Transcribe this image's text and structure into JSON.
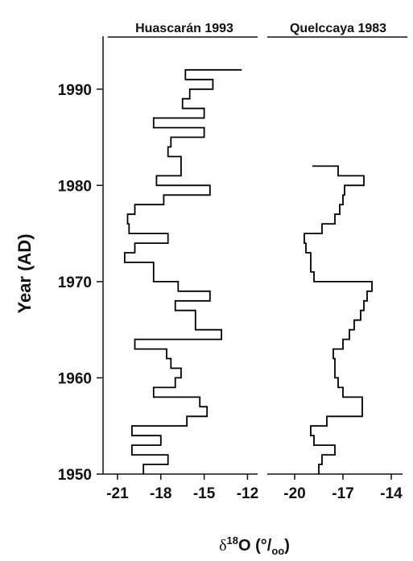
{
  "chart_data": [
    {
      "type": "step",
      "title": "Huascarán 1993",
      "ylabel": "Year (AD)",
      "xlabel": [
        "δ",
        "18",
        "O (°/",
        "oo",
        ")"
      ],
      "x": [
        1950,
        1951,
        1952,
        1953,
        1954,
        1955,
        1956,
        1957,
        1958,
        1959,
        1960,
        1961,
        1962,
        1963,
        1964,
        1965,
        1966,
        1967,
        1968,
        1969,
        1970,
        1971,
        1972,
        1973,
        1974,
        1975,
        1976,
        1977,
        1978,
        1979,
        1980,
        1981,
        1982,
        1983,
        1984,
        1985,
        1986,
        1987,
        1988,
        1989,
        1990,
        1991,
        1992
      ],
      "values": [
        -19.2,
        -17.5,
        -20.0,
        -18.0,
        -20.0,
        -16.2,
        -14.8,
        -15.3,
        -18.5,
        -17.0,
        -16.6,
        -17.3,
        -17.6,
        -19.8,
        -13.8,
        -15.6,
        -15.6,
        -17.0,
        -14.6,
        -16.8,
        -18.5,
        -18.5,
        -20.5,
        -19.8,
        -17.5,
        -20.2,
        -20.3,
        -19.8,
        -17.8,
        -14.6,
        -18.3,
        -16.6,
        -16.6,
        -17.5,
        -17.3,
        -15.0,
        -18.5,
        -15.0,
        -16.5,
        -16.0,
        -14.4,
        -16.3,
        -12.4
      ],
      "color": "#000000",
      "xlim": [
        -22,
        -11.3
      ],
      "xticks": [
        -21,
        -18,
        -15,
        -12
      ],
      "ylim": [
        1950,
        1995.5
      ],
      "yticks": [
        1950,
        1960,
        1970,
        1980,
        1990
      ]
    },
    {
      "type": "step",
      "title": "Quelccaya 1983",
      "x": [
        1950,
        1951,
        1952,
        1953,
        1954,
        1955,
        1956,
        1957,
        1958,
        1959,
        1960,
        1961,
        1962,
        1963,
        1964,
        1965,
        1966,
        1967,
        1968,
        1969,
        1970,
        1971,
        1972,
        1973,
        1974,
        1975,
        1976,
        1977,
        1978,
        1979,
        1980,
        1981,
        1982
      ],
      "values": [
        -18.5,
        -18.3,
        -17.5,
        -18.8,
        -19.0,
        -18.0,
        -15.8,
        -15.8,
        -17.0,
        -17.3,
        -17.5,
        -17.5,
        -17.6,
        -17.0,
        -16.6,
        -16.3,
        -15.9,
        -15.7,
        -15.5,
        -15.2,
        -18.8,
        -19.0,
        -19.0,
        -19.3,
        -19.4,
        -18.3,
        -17.5,
        -17.2,
        -17.0,
        -16.9,
        -15.7,
        -17.3,
        -18.9
      ],
      "color": "#000000",
      "xlim": [
        -21.7,
        -13.3
      ],
      "xticks": [
        -20,
        -17,
        -14
      ],
      "ylim": [
        1950,
        1995.5
      ]
    }
  ]
}
